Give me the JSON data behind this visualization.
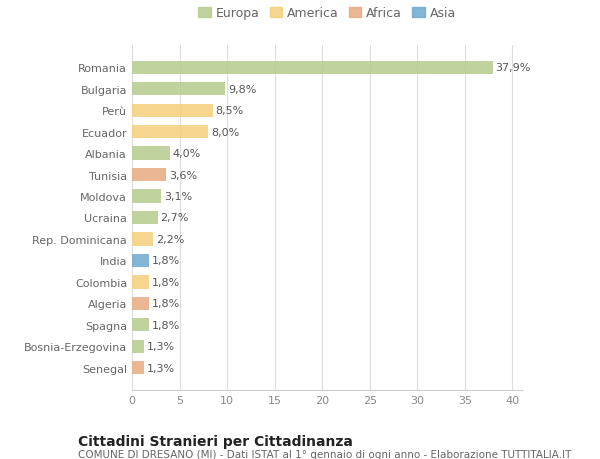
{
  "countries": [
    "Romania",
    "Bulgaria",
    "Perù",
    "Ecuador",
    "Albania",
    "Tunisia",
    "Moldova",
    "Ucraina",
    "Rep. Dominicana",
    "India",
    "Colombia",
    "Algeria",
    "Spagna",
    "Bosnia-Erzegovina",
    "Senegal"
  ],
  "values": [
    37.9,
    9.8,
    8.5,
    8.0,
    4.0,
    3.6,
    3.1,
    2.7,
    2.2,
    1.8,
    1.8,
    1.8,
    1.8,
    1.3,
    1.3
  ],
  "labels": [
    "37,9%",
    "9,8%",
    "8,5%",
    "8,0%",
    "4,0%",
    "3,6%",
    "3,1%",
    "2,7%",
    "2,2%",
    "1,8%",
    "1,8%",
    "1,8%",
    "1,8%",
    "1,3%",
    "1,3%"
  ],
  "colors": [
    "#b5cc8e",
    "#b5cc8e",
    "#f5ce7a",
    "#f5ce7a",
    "#b5cc8e",
    "#e8aa82",
    "#b5cc8e",
    "#b5cc8e",
    "#f5ce7a",
    "#6fa8d0",
    "#f5ce7a",
    "#e8aa82",
    "#b5cc8e",
    "#b5cc8e",
    "#e8aa82"
  ],
  "legend_labels": [
    "Europa",
    "America",
    "Africa",
    "Asia"
  ],
  "legend_colors": [
    "#b5cc8e",
    "#f5ce7a",
    "#e8aa82",
    "#6fa8d0"
  ],
  "title": "Cittadini Stranieri per Cittadinanza",
  "subtitle": "COMUNE DI DRESANO (MI) - Dati ISTAT al 1° gennaio di ogni anno - Elaborazione TUTTITALIA.IT",
  "xlim": [
    0,
    41
  ],
  "xticks": [
    0,
    5,
    10,
    15,
    20,
    25,
    30,
    35,
    40
  ],
  "background_color": "#ffffff",
  "grid_color": "#dddddd",
  "bar_height": 0.62,
  "title_fontsize": 10,
  "subtitle_fontsize": 7.5,
  "label_fontsize": 8,
  "tick_fontsize": 8,
  "legend_fontsize": 9
}
